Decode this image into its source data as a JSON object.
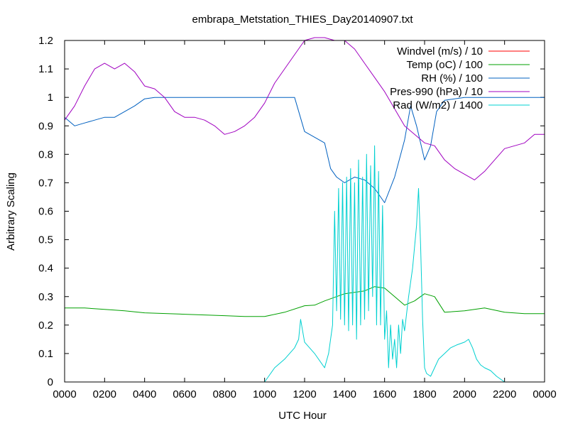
{
  "chart_data": {
    "type": "line",
    "title": "embrapa_Metstation_THIES_Day20140907.txt",
    "xlabel": "UTC Hour",
    "ylabel": "Arbitrary Scaling",
    "xlim": [
      0,
      24
    ],
    "ylim": [
      0,
      1.2
    ],
    "grid": false,
    "legend_position": "top-right",
    "x_ticks": [
      0,
      2,
      4,
      6,
      8,
      10,
      12,
      14,
      16,
      18,
      20,
      22,
      24
    ],
    "x_tick_labels": [
      "0000",
      "0200",
      "0400",
      "0600",
      "0800",
      "1000",
      "1200",
      "1400",
      "1600",
      "1800",
      "2000",
      "2200",
      "0000"
    ],
    "y_ticks": [
      0,
      0.1,
      0.2,
      0.3,
      0.4,
      0.5,
      0.6,
      0.7,
      0.8,
      0.9,
      1,
      1.1,
      1.2
    ],
    "y_tick_labels": [
      "0",
      "0.1",
      "0.2",
      "0.3",
      "0.4",
      "0.5",
      "0.6",
      "0.7",
      "0.8",
      "0.9",
      "1",
      "1.1",
      "1.2"
    ],
    "series": [
      {
        "name": "Windvel (m/s) / 10",
        "color": "#ff0000",
        "x": [],
        "y": []
      },
      {
        "name": "Temp (oC) / 100",
        "color": "#00a000",
        "x": [
          0,
          1,
          2,
          3,
          4,
          6,
          8,
          9,
          10,
          11,
          12,
          12.5,
          13,
          14,
          14.5,
          15,
          15.5,
          16,
          16.5,
          17,
          17.5,
          18,
          18.5,
          19,
          20,
          21,
          22,
          23,
          24
        ],
        "y": [
          0.26,
          0.26,
          0.255,
          0.25,
          0.243,
          0.238,
          0.233,
          0.23,
          0.23,
          0.245,
          0.268,
          0.27,
          0.285,
          0.31,
          0.315,
          0.32,
          0.335,
          0.33,
          0.3,
          0.27,
          0.285,
          0.31,
          0.3,
          0.245,
          0.25,
          0.26,
          0.245,
          0.24,
          0.24
        ]
      },
      {
        "name": "RH (%) / 100",
        "color": "#0060c0",
        "x": [
          0,
          0.5,
          1,
          1.5,
          2,
          2.5,
          3,
          3.5,
          4,
          4.5,
          5,
          6,
          7,
          8,
          9,
          10,
          11,
          11.5,
          12,
          12.5,
          13,
          13.3,
          13.6,
          14,
          14.5,
          15,
          15.5,
          16,
          16.5,
          17,
          17.3,
          17.6,
          18,
          18.3,
          18.6,
          19,
          20,
          21,
          22,
          23,
          24
        ],
        "y": [
          0.93,
          0.9,
          0.91,
          0.92,
          0.93,
          0.93,
          0.95,
          0.97,
          0.995,
          1,
          1,
          1,
          1,
          1,
          1,
          1,
          1,
          1,
          0.88,
          0.86,
          0.84,
          0.75,
          0.72,
          0.7,
          0.72,
          0.71,
          0.68,
          0.63,
          0.72,
          0.85,
          0.97,
          0.9,
          0.78,
          0.83,
          0.95,
          0.99,
          1,
          1,
          1,
          1,
          1
        ]
      },
      {
        "name": "Pres-990 (hPa) / 10",
        "color": "#a000c0",
        "x": [
          0,
          0.5,
          1,
          1.5,
          2,
          2.5,
          3,
          3.5,
          4,
          4.5,
          5,
          5.5,
          6,
          6.5,
          7,
          7.5,
          8,
          8.5,
          9,
          9.5,
          10,
          10.5,
          11,
          11.5,
          12,
          12.5,
          13,
          13.5,
          14,
          14.5,
          15,
          15.5,
          16,
          16.5,
          17,
          17.5,
          18,
          18.5,
          19,
          19.5,
          20,
          20.5,
          21,
          21.5,
          22,
          22.5,
          23,
          23.5,
          24
        ],
        "y": [
          0.92,
          0.97,
          1.04,
          1.1,
          1.12,
          1.1,
          1.12,
          1.09,
          1.04,
          1.03,
          1.0,
          0.95,
          0.93,
          0.93,
          0.92,
          0.9,
          0.87,
          0.88,
          0.9,
          0.93,
          0.98,
          1.05,
          1.1,
          1.15,
          1.2,
          1.21,
          1.21,
          1.2,
          1.2,
          1.17,
          1.12,
          1.07,
          1.02,
          0.96,
          0.9,
          0.87,
          0.84,
          0.83,
          0.78,
          0.75,
          0.73,
          0.71,
          0.74,
          0.78,
          0.82,
          0.83,
          0.84,
          0.87,
          0.87
        ]
      },
      {
        "name": "Rad (W/m2) / 1400",
        "color": "#00d0d0",
        "x": [
          0,
          10,
          10.5,
          11,
          11.5,
          11.7,
          11.8,
          12,
          12.5,
          13,
          13.2,
          13.4,
          13.5,
          13.6,
          13.7,
          13.8,
          13.9,
          14,
          14.1,
          14.2,
          14.3,
          14.4,
          14.5,
          14.6,
          14.7,
          14.8,
          14.9,
          15,
          15.1,
          15.2,
          15.3,
          15.4,
          15.5,
          15.6,
          15.7,
          15.8,
          15.9,
          16,
          16.1,
          16.2,
          16.3,
          16.4,
          16.5,
          16.6,
          16.7,
          16.8,
          16.9,
          17,
          17.2,
          17.4,
          17.6,
          17.7,
          17.8,
          17.9,
          18,
          18.1,
          18.3,
          18.5,
          18.7,
          19,
          19.3,
          19.6,
          20,
          20.2,
          20.4,
          20.6,
          20.8,
          21,
          21.3,
          21.6,
          22,
          22.2
        ],
        "y": [
          0,
          0,
          0.05,
          0.08,
          0.12,
          0.15,
          0.22,
          0.14,
          0.1,
          0.05,
          0.1,
          0.2,
          0.6,
          0.25,
          0.68,
          0.22,
          0.7,
          0.2,
          0.72,
          0.18,
          0.75,
          0.2,
          0.7,
          0.15,
          0.78,
          0.2,
          0.72,
          0.22,
          0.8,
          0.25,
          0.76,
          0.3,
          0.83,
          0.2,
          0.74,
          0.2,
          0.62,
          0.15,
          0.25,
          0.05,
          0.2,
          0.08,
          0.15,
          0.05,
          0.2,
          0.1,
          0.22,
          0.18,
          0.3,
          0.4,
          0.55,
          0.68,
          0.48,
          0.22,
          0.05,
          0.03,
          0.02,
          0.05,
          0.08,
          0.1,
          0.12,
          0.13,
          0.14,
          0.15,
          0.12,
          0.08,
          0.06,
          0.05,
          0.04,
          0.02,
          0.0,
          0.0
        ]
      }
    ]
  }
}
